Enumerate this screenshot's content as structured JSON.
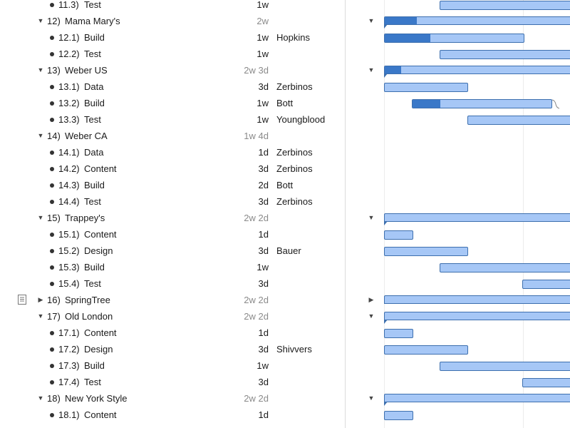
{
  "outline": {
    "rows": [
      {
        "kind": "task",
        "num": "11.3)",
        "title": "Test",
        "duration": "1w",
        "assignee": ""
      },
      {
        "kind": "group",
        "num": "12)",
        "title": "Mama Mary's",
        "duration": "2w",
        "assignee": "",
        "expanded": true
      },
      {
        "kind": "task",
        "num": "12.1)",
        "title": "Build",
        "duration": "1w",
        "assignee": "Hopkins"
      },
      {
        "kind": "task",
        "num": "12.2)",
        "title": "Test",
        "duration": "1w",
        "assignee": ""
      },
      {
        "kind": "group",
        "num": "13)",
        "title": "Weber US",
        "duration": "2w 3d",
        "assignee": "",
        "expanded": true
      },
      {
        "kind": "task",
        "num": "13.1)",
        "title": "Data",
        "duration": "3d",
        "assignee": "Zerbinos"
      },
      {
        "kind": "task",
        "num": "13.2)",
        "title": "Build",
        "duration": "1w",
        "assignee": "Bott"
      },
      {
        "kind": "task",
        "num": "13.3)",
        "title": "Test",
        "duration": "1w",
        "assignee": "Youngblood"
      },
      {
        "kind": "group",
        "num": "14)",
        "title": "Weber CA",
        "duration": "1w 4d",
        "assignee": "",
        "expanded": true
      },
      {
        "kind": "task",
        "num": "14.1)",
        "title": "Data",
        "duration": "1d",
        "assignee": "Zerbinos"
      },
      {
        "kind": "task",
        "num": "14.2)",
        "title": "Content",
        "duration": "3d",
        "assignee": "Zerbinos"
      },
      {
        "kind": "task",
        "num": "14.3)",
        "title": "Build",
        "duration": "2d",
        "assignee": "Bott"
      },
      {
        "kind": "task",
        "num": "14.4)",
        "title": "Test",
        "duration": "3d",
        "assignee": "Zerbinos"
      },
      {
        "kind": "group",
        "num": "15)",
        "title": "Trappey's",
        "duration": "2w 2d",
        "assignee": "",
        "expanded": true
      },
      {
        "kind": "task",
        "num": "15.1)",
        "title": "Content",
        "duration": "1d",
        "assignee": ""
      },
      {
        "kind": "task",
        "num": "15.2)",
        "title": "Design",
        "duration": "3d",
        "assignee": "Bauer"
      },
      {
        "kind": "task",
        "num": "15.3)",
        "title": "Build",
        "duration": "1w",
        "assignee": ""
      },
      {
        "kind": "task",
        "num": "15.4)",
        "title": "Test",
        "duration": "3d",
        "assignee": ""
      },
      {
        "kind": "group",
        "num": "16)",
        "title": "SpringTree",
        "duration": "2w 2d",
        "assignee": "",
        "expanded": false,
        "has_note": true
      },
      {
        "kind": "group",
        "num": "17)",
        "title": "Old London",
        "duration": "2w 2d",
        "assignee": "",
        "expanded": true
      },
      {
        "kind": "task",
        "num": "17.1)",
        "title": "Content",
        "duration": "1d",
        "assignee": ""
      },
      {
        "kind": "task",
        "num": "17.2)",
        "title": "Design",
        "duration": "3d",
        "assignee": "Shivvers"
      },
      {
        "kind": "task",
        "num": "17.3)",
        "title": "Build",
        "duration": "1w",
        "assignee": ""
      },
      {
        "kind": "task",
        "num": "17.4)",
        "title": "Test",
        "duration": "3d",
        "assignee": ""
      },
      {
        "kind": "group",
        "num": "18)",
        "title": "New York Style",
        "duration": "2w 2d",
        "assignee": "",
        "expanded": true
      },
      {
        "kind": "task",
        "num": "18.1)",
        "title": "Content",
        "duration": "1d",
        "assignee": ""
      }
    ]
  },
  "gantt": {
    "labels": {
      "12.1": "Hopkins",
      "13.1": "Zerbinos",
      "13.2": "Bo",
      "15.2": "Bauer",
      "17.2": "Shivvers"
    }
  },
  "icons": {
    "expanded": "disclosure-down-icon",
    "collapsed": "disclosure-right-icon",
    "note": "note-icon",
    "bullet": "bullet-icon"
  },
  "colors": {
    "bar_fill": "#a6c7f6",
    "bar_border": "#3d6fae",
    "progress": "#3a78c8",
    "group_duration": "#8a8a8a"
  }
}
